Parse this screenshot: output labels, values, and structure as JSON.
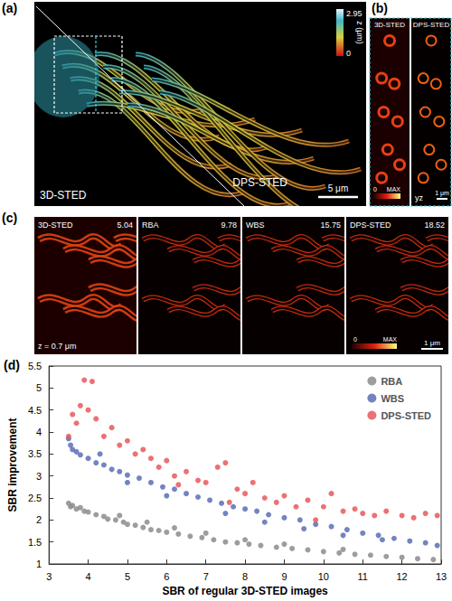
{
  "panels": {
    "a": {
      "label": "(a)",
      "left": "3D-STED",
      "right": "DPS-STED",
      "scale_bar": "5 μm",
      "colorbar": {
        "label": "z (μm)",
        "range": [
          0,
          2.95
        ]
      }
    },
    "b": {
      "label": "(b)",
      "images": [
        "3D-STED",
        "DPS-STED"
      ],
      "colorbar": [
        "0",
        "MAX"
      ],
      "plane": "yz",
      "scale_bar": "1 μm"
    },
    "c": {
      "label": "(c)",
      "images": [
        {
          "name": "3D-STED",
          "value": 5.04
        },
        {
          "name": "RBA",
          "value": 9.78
        },
        {
          "name": "WBS",
          "value": 15.75
        },
        {
          "name": "DPS-STED",
          "value": 18.52
        }
      ],
      "depth": "z = 0.7 μm",
      "colorbar": [
        "0",
        "MAX"
      ],
      "scale_bar": "1 μm"
    }
  },
  "chart_data": {
    "type": "scatter",
    "label": "(d)",
    "xlabel": "SBR of regular 3D-STED images",
    "ylabel": "SBR improvement",
    "xlim": [
      3,
      13
    ],
    "xticks": [
      3,
      4,
      5,
      6,
      7,
      8,
      9,
      10,
      11,
      12,
      13
    ],
    "ylim": [
      1,
      5.5
    ],
    "yticks": [
      1,
      1.5,
      2,
      2.5,
      3,
      3.5,
      4,
      4.5,
      5,
      5.5
    ],
    "grid": false,
    "legend": "top-right",
    "series": [
      {
        "name": "RBA",
        "color": "#8c8c8c",
        "marker": "circle",
        "values": [
          [
            3.5,
            2.38
          ],
          [
            3.55,
            2.3
          ],
          [
            3.6,
            2.33
          ],
          [
            3.7,
            2.25
          ],
          [
            3.8,
            2.28
          ],
          [
            3.9,
            2.2
          ],
          [
            4.0,
            2.18
          ],
          [
            4.2,
            2.12
          ],
          [
            4.4,
            2.08
          ],
          [
            4.5,
            2.02
          ],
          [
            4.7,
            2.0
          ],
          [
            4.9,
            1.95
          ],
          [
            5.0,
            1.9
          ],
          [
            5.2,
            1.88
          ],
          [
            5.4,
            1.83
          ],
          [
            5.6,
            1.78
          ],
          [
            5.8,
            1.76
          ],
          [
            6.0,
            1.72
          ],
          [
            6.3,
            1.68
          ],
          [
            6.6,
            1.63
          ],
          [
            6.9,
            1.6
          ],
          [
            7.2,
            1.55
          ],
          [
            7.5,
            1.5
          ],
          [
            7.8,
            1.48
          ],
          [
            8.1,
            1.45
          ],
          [
            8.4,
            1.42
          ],
          [
            8.8,
            1.38
          ],
          [
            9.2,
            1.35
          ],
          [
            9.6,
            1.32
          ],
          [
            10.0,
            1.28
          ],
          [
            10.4,
            1.25
          ],
          [
            10.8,
            1.22
          ],
          [
            11.2,
            1.2
          ],
          [
            11.6,
            1.17
          ],
          [
            12.0,
            1.15
          ],
          [
            12.4,
            1.12
          ],
          [
            12.8,
            1.1
          ],
          [
            6.2,
            1.82
          ],
          [
            7.0,
            1.7
          ],
          [
            8.0,
            1.55
          ],
          [
            9.0,
            1.45
          ],
          [
            10.5,
            1.33
          ],
          [
            4.8,
            2.1
          ],
          [
            5.5,
            1.95
          ]
        ]
      },
      {
        "name": "WBS",
        "color": "#5b6fb5",
        "marker": "circle",
        "values": [
          [
            3.5,
            3.85
          ],
          [
            3.55,
            3.7
          ],
          [
            3.6,
            3.6
          ],
          [
            3.7,
            3.55
          ],
          [
            3.8,
            3.48
          ],
          [
            4.0,
            3.4
          ],
          [
            4.2,
            3.3
          ],
          [
            4.4,
            3.25
          ],
          [
            4.6,
            3.15
          ],
          [
            4.8,
            3.1
          ],
          [
            5.0,
            3.02
          ],
          [
            5.3,
            2.95
          ],
          [
            5.6,
            2.85
          ],
          [
            5.9,
            2.75
          ],
          [
            6.2,
            2.7
          ],
          [
            6.5,
            2.6
          ],
          [
            6.8,
            2.52
          ],
          [
            7.1,
            2.45
          ],
          [
            7.4,
            2.38
          ],
          [
            7.7,
            2.3
          ],
          [
            8.0,
            2.25
          ],
          [
            8.3,
            2.2
          ],
          [
            8.6,
            2.12
          ],
          [
            9.0,
            2.05
          ],
          [
            9.4,
            2.0
          ],
          [
            9.8,
            1.9
          ],
          [
            10.2,
            1.85
          ],
          [
            10.6,
            1.78
          ],
          [
            11.0,
            1.7
          ],
          [
            11.4,
            1.65
          ],
          [
            11.8,
            1.58
          ],
          [
            12.2,
            1.52
          ],
          [
            12.6,
            1.48
          ],
          [
            12.9,
            1.42
          ],
          [
            7.5,
            2.15
          ],
          [
            8.5,
            1.95
          ],
          [
            9.5,
            1.8
          ],
          [
            10.5,
            1.65
          ],
          [
            11.5,
            1.55
          ],
          [
            6.0,
            2.55
          ],
          [
            5.0,
            2.85
          ],
          [
            4.3,
            3.5
          ]
        ]
      },
      {
        "name": "DPS-STED",
        "color": "#e8585c",
        "marker": "circle",
        "values": [
          [
            3.5,
            3.9
          ],
          [
            3.6,
            4.4
          ],
          [
            3.7,
            4.2
          ],
          [
            3.8,
            4.6
          ],
          [
            3.9,
            5.18
          ],
          [
            4.0,
            4.5
          ],
          [
            4.1,
            5.15
          ],
          [
            4.2,
            4.3
          ],
          [
            4.4,
            3.9
          ],
          [
            4.6,
            4.1
          ],
          [
            4.8,
            3.7
          ],
          [
            5.0,
            3.8
          ],
          [
            5.2,
            3.5
          ],
          [
            5.4,
            3.6
          ],
          [
            5.6,
            3.4
          ],
          [
            5.8,
            3.2
          ],
          [
            6.0,
            3.35
          ],
          [
            6.2,
            3.0
          ],
          [
            6.5,
            3.1
          ],
          [
            6.8,
            2.9
          ],
          [
            7.0,
            2.85
          ],
          [
            7.3,
            3.2
          ],
          [
            7.5,
            3.3
          ],
          [
            7.8,
            2.7
          ],
          [
            8.0,
            2.6
          ],
          [
            8.2,
            2.85
          ],
          [
            8.5,
            2.5
          ],
          [
            8.8,
            2.4
          ],
          [
            9.0,
            2.55
          ],
          [
            9.3,
            2.3
          ],
          [
            9.6,
            2.45
          ],
          [
            10.0,
            2.3
          ],
          [
            10.2,
            2.6
          ],
          [
            10.5,
            2.2
          ],
          [
            10.8,
            2.25
          ],
          [
            11.0,
            2.15
          ],
          [
            11.3,
            2.1
          ],
          [
            11.6,
            2.2
          ],
          [
            12.0,
            2.1
          ],
          [
            12.3,
            2.05
          ],
          [
            12.6,
            2.15
          ],
          [
            12.9,
            2.1
          ],
          [
            9.8,
            2.0
          ],
          [
            7.6,
            2.4
          ],
          [
            6.3,
            2.8
          ]
        ]
      }
    ]
  }
}
